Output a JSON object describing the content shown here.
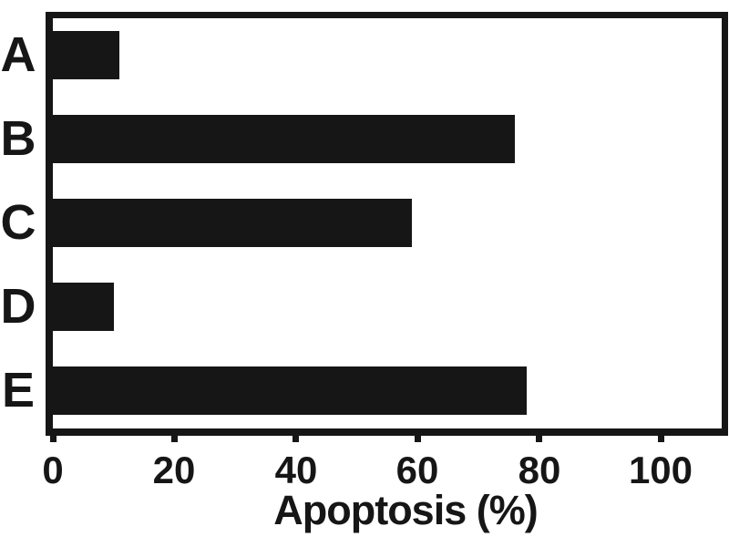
{
  "figure": {
    "background": "#ffffff",
    "bar_color": "#161616",
    "axis_color": "#161616",
    "text_color": "#161616"
  },
  "chart_data": {
    "type": "bar",
    "orientation": "horizontal",
    "title": "",
    "xlabel": "Apoptosis (%)",
    "ylabel": "",
    "categories": [
      "A",
      "B",
      "C",
      "D",
      "E"
    ],
    "values": [
      11,
      76,
      59,
      10,
      78
    ],
    "xticks": [
      0,
      20,
      40,
      60,
      80,
      100
    ],
    "xlim": [
      0,
      110
    ],
    "grid": false,
    "legend": null
  }
}
